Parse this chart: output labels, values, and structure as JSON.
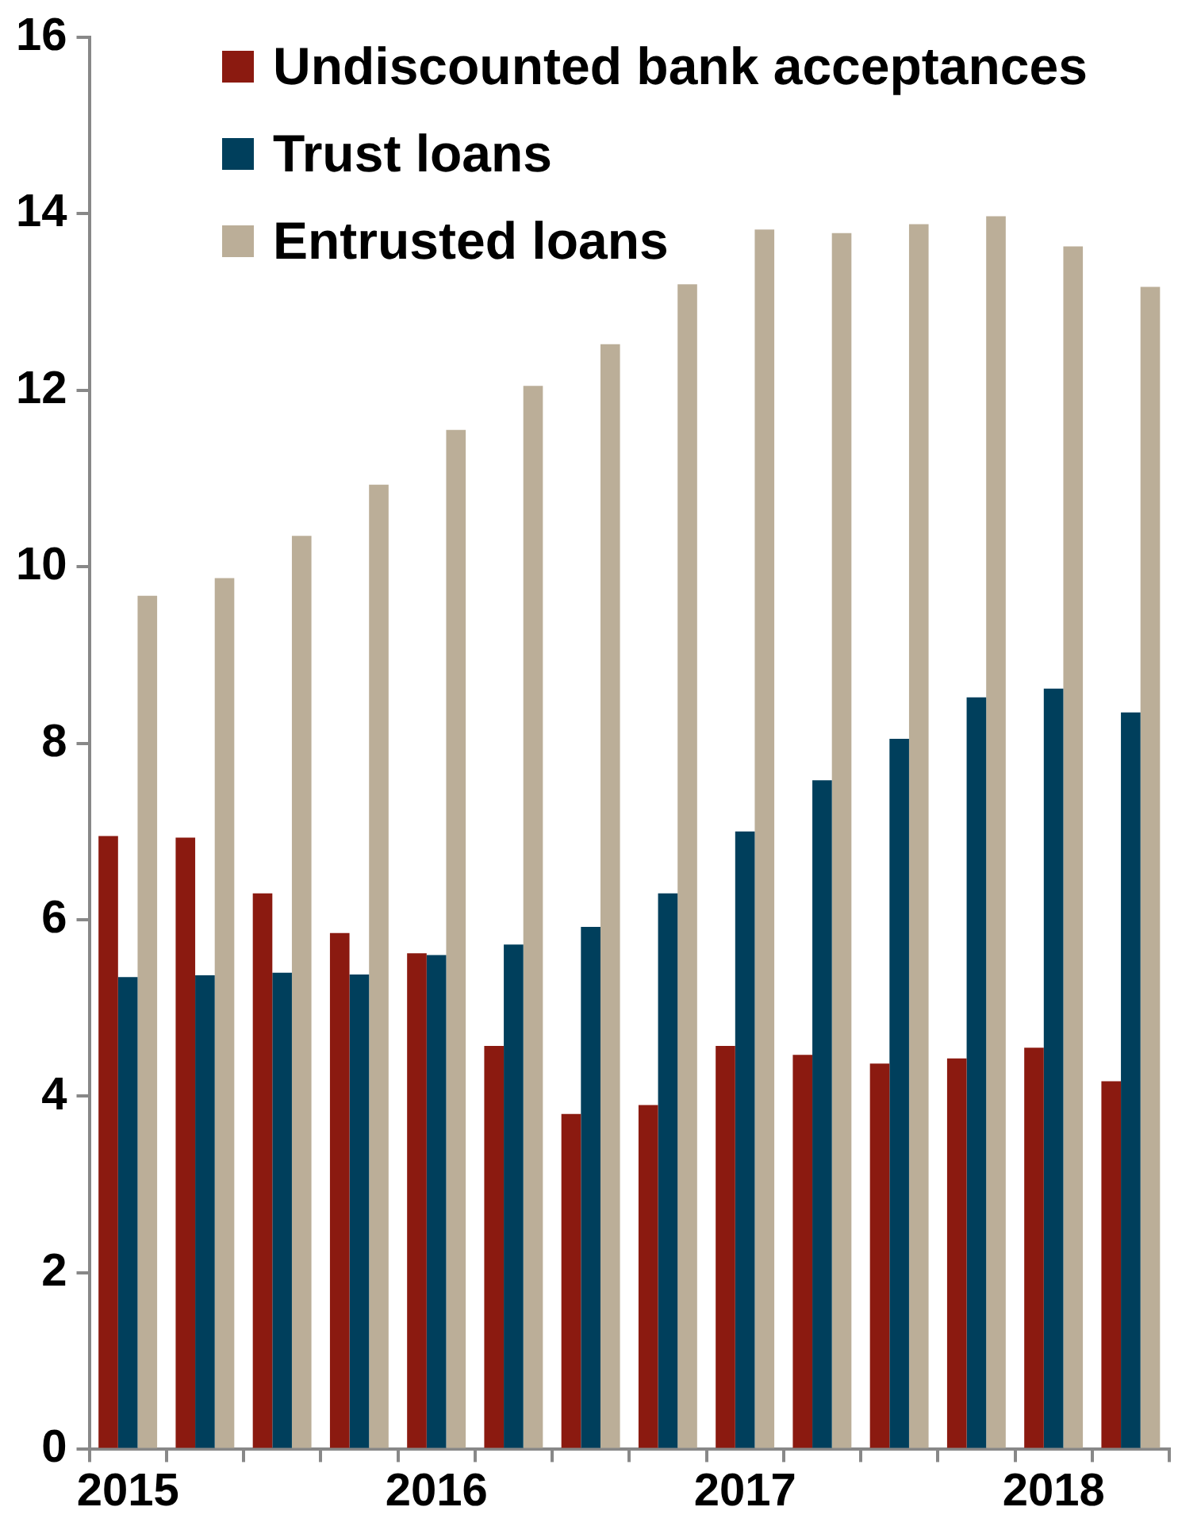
{
  "chart_data": {
    "type": "bar",
    "categories": [
      "2015",
      null,
      null,
      null,
      "2016",
      null,
      null,
      null,
      "2017",
      null,
      null,
      null,
      "2018",
      null
    ],
    "series": [
      {
        "name": "Undiscounted bank acceptances",
        "color": "#8b1a10",
        "values": [
          6.95,
          6.93,
          6.3,
          5.85,
          5.62,
          4.57,
          3.8,
          3.9,
          4.57,
          4.47,
          4.37,
          4.43,
          4.55,
          4.17
        ]
      },
      {
        "name": "Trust loans",
        "color": "#003f5c",
        "values": [
          5.35,
          5.37,
          5.4,
          5.38,
          5.6,
          5.72,
          5.92,
          6.3,
          7.0,
          7.58,
          8.05,
          8.52,
          8.62,
          8.35
        ]
      },
      {
        "name": "Entrusted loans",
        "color": "#bbae98",
        "values": [
          9.67,
          9.87,
          10.35,
          10.93,
          11.55,
          12.05,
          12.52,
          13.2,
          13.82,
          13.78,
          13.88,
          13.97,
          13.63,
          13.17
        ]
      }
    ],
    "ylim": [
      0,
      16
    ],
    "yticks": [
      0,
      2,
      4,
      6,
      8,
      10,
      12,
      14,
      16
    ],
    "grid": false,
    "legend": "top right"
  }
}
